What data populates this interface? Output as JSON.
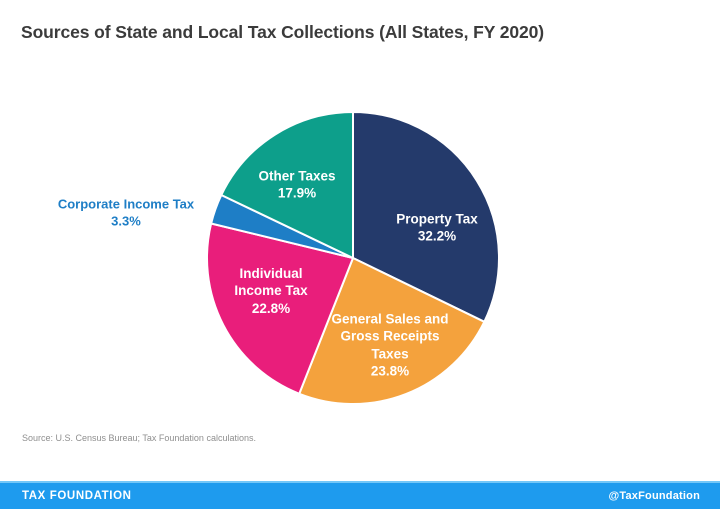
{
  "title": "Sources of State and Local Tax Collections (All States, FY 2020)",
  "source_note": "Source: U.S. Census Bureau; Tax Foundation calculations.",
  "footer": {
    "brand": "TAX FOUNDATION",
    "handle": "@TaxFoundation",
    "bar_color": "#1e9bee",
    "bar_edge_color": "#73c7f8"
  },
  "chart_data": {
    "type": "pie",
    "title": "Sources of State and Local Tax Collections (All States, FY 2020)",
    "start_angle_deg": 0,
    "direction": "clockwise-from-top",
    "legend_position": "labels-on-slices",
    "slice_border_color": "#ffffff",
    "slices": [
      {
        "name": "Property Tax",
        "value": 32.2,
        "pct_label": "32.2%",
        "color": "#243a6b",
        "label_position": "inside",
        "label_color": "#ffffff"
      },
      {
        "name": "General Sales and Gross Receipts Taxes",
        "value": 23.8,
        "pct_label": "23.8%",
        "color": "#f4a23d",
        "label_position": "inside",
        "label_color": "#ffffff"
      },
      {
        "name": "Individual Income Tax",
        "value": 22.8,
        "pct_label": "22.8%",
        "color": "#e91e7b",
        "label_position": "inside",
        "label_color": "#ffffff"
      },
      {
        "name": "Corporate Income Tax",
        "value": 3.3,
        "pct_label": "3.3%",
        "color": "#1e7ec6",
        "label_position": "outside",
        "label_color": "#1e7ec6"
      },
      {
        "name": "Other Taxes",
        "value": 17.9,
        "pct_label": "17.9%",
        "color": "#0d9f8b",
        "label_position": "inside",
        "label_color": "#ffffff"
      }
    ]
  }
}
